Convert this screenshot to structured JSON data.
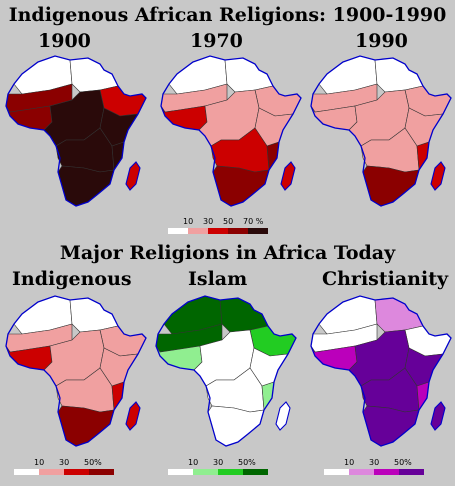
{
  "title_top": "Indigenous African Religions: 1900-1990",
  "years": [
    "1900",
    "1970",
    "1990"
  ],
  "title_bottom": "Major Religions in Africa Today",
  "panels": [
    "Indigenous",
    "Islam",
    "Christianity"
  ],
  "legend_top": {
    "labels": [
      "10",
      "30",
      "50",
      "70 %"
    ],
    "colors": [
      "#ffffff",
      "#f0a0a0",
      "#cc0000",
      "#8b0000",
      "#2a0a0a"
    ]
  },
  "legend_indigenous": {
    "labels": [
      "10",
      "30",
      "50%"
    ],
    "colors": [
      "#ffffff",
      "#f0a0a0",
      "#cc0000",
      "#8b0000"
    ]
  },
  "legend_islam": {
    "labels": [
      "10",
      "30",
      "50%"
    ],
    "colors": [
      "#ffffff",
      "#90ee90",
      "#22cc22",
      "#006600"
    ]
  },
  "legend_christianity": {
    "labels": [
      "10",
      "30",
      "50%"
    ],
    "colors": [
      "#ffffff",
      "#dd88dd",
      "#bb00bb",
      "#660099"
    ]
  },
  "colors": {
    "background": "#c8c8c8",
    "border": "#333333",
    "coast": "#0000cc"
  }
}
